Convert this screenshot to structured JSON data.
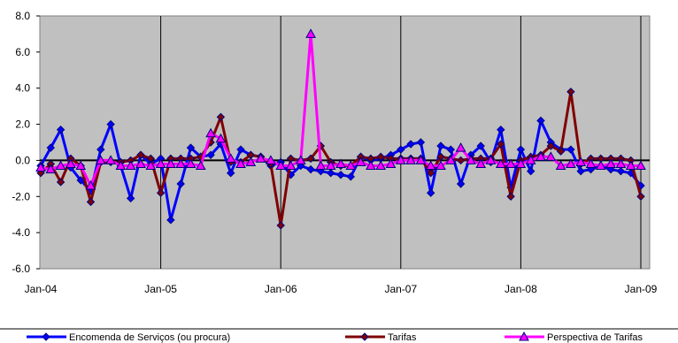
{
  "chart_data": {
    "type": "line",
    "title": "",
    "xlabel": "",
    "ylabel": "",
    "ylim": [
      -6.0,
      8.0
    ],
    "y_ticks": [
      "8.0",
      "6.0",
      "4.0",
      "2.0",
      "0.0",
      "-2.0",
      "-4.0",
      "-6.0"
    ],
    "x_ticks": [
      {
        "label": "Jan-04",
        "index": 0
      },
      {
        "label": "Jan-05",
        "index": 12
      },
      {
        "label": "Jan-06",
        "index": 24
      },
      {
        "label": "Jan-07",
        "index": 36
      },
      {
        "label": "Jan-08",
        "index": 48
      },
      {
        "label": "Jan-09",
        "index": 60
      }
    ],
    "x_count": 61,
    "vertical_lines_at": [
      12,
      24,
      36,
      48,
      60
    ],
    "plot_background": "#c0c0c0",
    "legend_position": "bottom",
    "series": [
      {
        "name": "Encomenda de Serviços (ou procura)",
        "color": "#0000ff",
        "marker": "diamond",
        "values": [
          -0.3,
          0.7,
          1.7,
          -0.4,
          -1.1,
          -1.7,
          0.6,
          2.0,
          -0.3,
          -2.1,
          0.3,
          -0.2,
          0.1,
          -3.3,
          -1.3,
          0.7,
          0.2,
          0.3,
          0.9,
          -0.7,
          0.6,
          0.3,
          0.2,
          -0.3,
          -0.1,
          -0.8,
          -0.3,
          -0.5,
          -0.6,
          -0.7,
          -0.8,
          -0.9,
          0.2,
          0.0,
          0.1,
          0.3,
          0.6,
          0.9,
          1.0,
          -1.8,
          0.8,
          0.6,
          -1.3,
          0.3,
          0.8,
          -0.1,
          1.7,
          -1.5,
          0.6,
          -0.6,
          2.2,
          1.0,
          0.6,
          0.6,
          -0.6,
          -0.5,
          -0.3,
          -0.5,
          -0.6,
          -0.7,
          -1.4
        ]
      },
      {
        "name": "Tarifas",
        "color": "#800000",
        "marker": "diamond",
        "values": [
          -0.7,
          -0.2,
          -1.2,
          0.1,
          -0.3,
          -2.3,
          -0.1,
          -0.1,
          -0.1,
          0.0,
          0.3,
          0.1,
          -1.8,
          0.1,
          0.1,
          0.1,
          0.2,
          1.0,
          2.4,
          -0.1,
          -0.1,
          0.3,
          0.2,
          -0.2,
          -3.6,
          0.1,
          0.0,
          0.1,
          0.8,
          -0.1,
          -0.3,
          -0.3,
          0.2,
          0.1,
          0.2,
          0.1,
          0.1,
          0.1,
          0.1,
          -0.7,
          0.2,
          0.1,
          0.0,
          0.1,
          0.1,
          0.1,
          0.9,
          -2.0,
          0.0,
          0.2,
          0.3,
          0.8,
          0.5,
          3.8,
          -0.2,
          0.1,
          0.1,
          0.1,
          0.1,
          0.0,
          -2.0
        ]
      },
      {
        "name": "Perspectiva de Tarifas",
        "color": "#ff00ff",
        "marker": "triangle",
        "values": [
          -0.4,
          -0.5,
          -0.3,
          -0.2,
          -0.3,
          -1.4,
          0.0,
          0.0,
          -0.3,
          -0.3,
          -0.2,
          -0.3,
          -0.2,
          -0.2,
          -0.2,
          -0.2,
          -0.3,
          1.5,
          1.2,
          0.1,
          -0.2,
          -0.1,
          0.1,
          0.0,
          -0.3,
          -0.3,
          0.0,
          7.0,
          -0.3,
          -0.3,
          -0.2,
          -0.3,
          -0.1,
          -0.3,
          -0.3,
          -0.2,
          0.0,
          0.0,
          0.0,
          -0.3,
          -0.3,
          0.0,
          0.7,
          0.0,
          -0.2,
          0.0,
          -0.2,
          -0.2,
          -0.2,
          0.0,
          0.2,
          0.2,
          -0.3,
          -0.2,
          -0.1,
          -0.2,
          -0.3,
          -0.2,
          -0.2,
          -0.3,
          -0.3
        ]
      }
    ]
  }
}
